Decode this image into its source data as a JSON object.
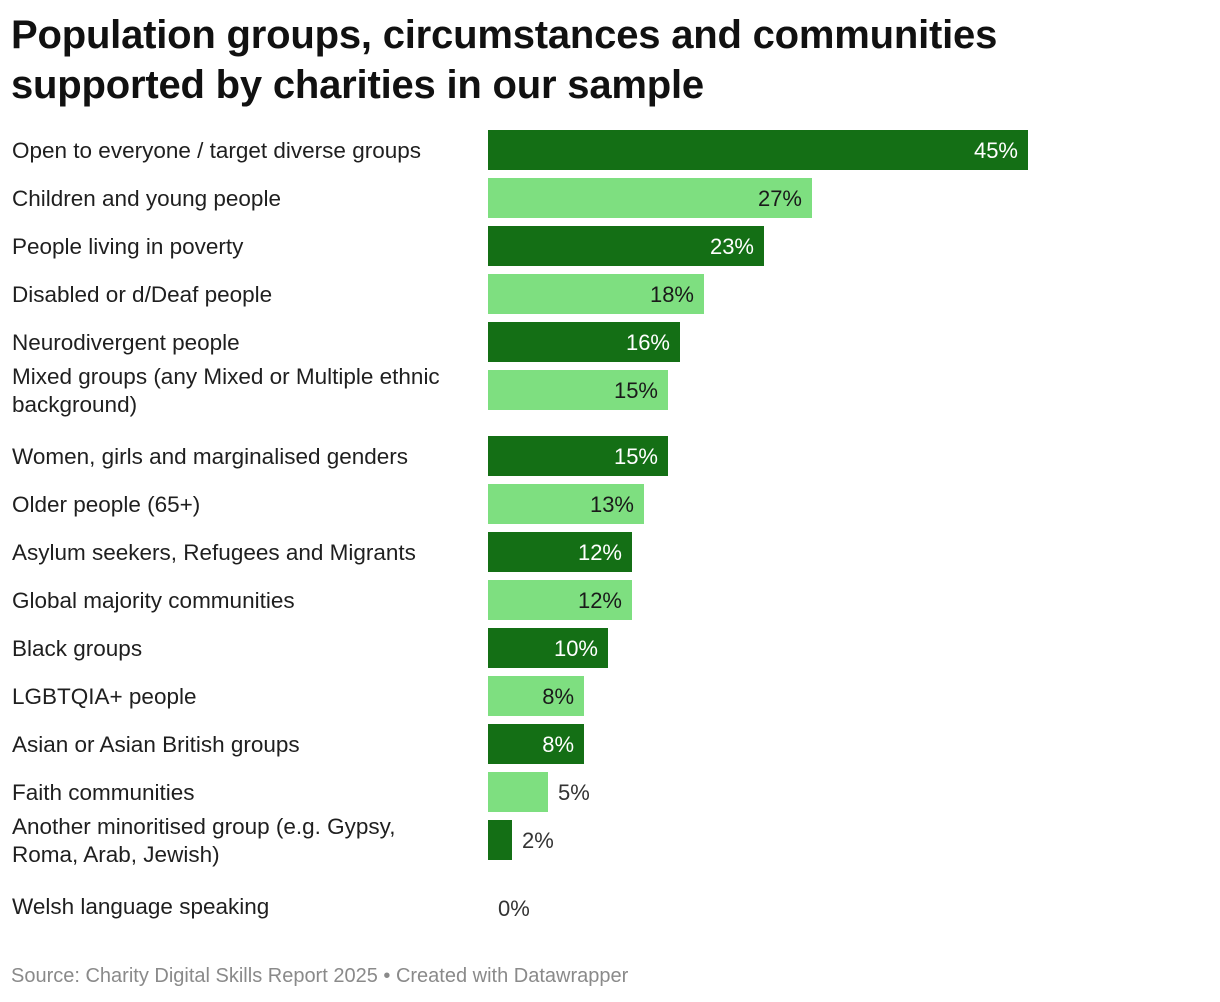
{
  "chart_data": {
    "type": "bar",
    "orientation": "horizontal",
    "title": "Population groups, circumstances and communities supported by charities in our sample",
    "categories": [
      "Open to everyone / target diverse groups",
      "Children and young people",
      "People living in poverty",
      "Disabled or d/Deaf people",
      "Neurodivergent people",
      "Mixed groups (any Mixed or Multiple ethnic background)",
      "Women, girls and marginalised genders",
      "Older people (65+)",
      "Asylum seekers, Refugees and Migrants",
      "Global majority communities",
      "Black groups",
      "LGBTQIA+ people",
      "Asian or Asian British groups",
      "Faith communities",
      "Another minoritised group (e.g. Gypsy, Roma, Arab, Jewish)",
      "Welsh language speaking"
    ],
    "category_lines": [
      [
        "Open to everyone / target diverse groups"
      ],
      [
        "Children and young people"
      ],
      [
        "People living in poverty"
      ],
      [
        "Disabled or d/Deaf people"
      ],
      [
        "Neurodivergent people"
      ],
      [
        "Mixed groups (any Mixed or Multiple ethnic",
        "background)"
      ],
      [
        "Women, girls and marginalised genders"
      ],
      [
        "Older people (65+)"
      ],
      [
        "Asylum seekers, Refugees and Migrants"
      ],
      [
        "Global majority communities"
      ],
      [
        "Black groups"
      ],
      [
        "LGBTQIA+ people"
      ],
      [
        "Asian or Asian British groups"
      ],
      [
        "Faith communities"
      ],
      [
        "Another minoritised group (e.g. Gypsy,",
        "Roma, Arab, Jewish)"
      ],
      [
        "Welsh language speaking"
      ]
    ],
    "values": [
      45,
      27,
      23,
      18,
      16,
      15,
      15,
      13,
      12,
      12,
      10,
      8,
      8,
      5,
      2,
      0
    ],
    "value_labels": [
      "45%",
      "27%",
      "23%",
      "18%",
      "16%",
      "15%",
      "15%",
      "13%",
      "12%",
      "12%",
      "10%",
      "8%",
      "8%",
      "5%",
      "2%",
      "0%"
    ],
    "unit": "%",
    "xlim": [
      0,
      45
    ],
    "colors": {
      "dark_bar": "#146f15",
      "light_bar": "#7edf80",
      "label_on_dark": "#ffffff",
      "label_on_light": "#1a1a1a",
      "label_outside": "#333333"
    },
    "color_pattern": "alternating dark / light starting with dark",
    "grid": false,
    "legend": "none"
  },
  "footer": {
    "source": "Source: Charity Digital Skills Report 2025 • Created with Datawrapper"
  }
}
